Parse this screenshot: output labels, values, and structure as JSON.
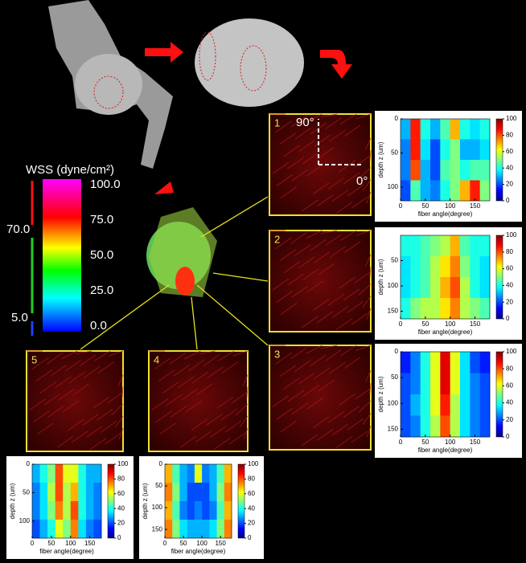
{
  "colorbar": {
    "title": "WSS (dyne/cm²)",
    "ticks": [
      "100.0",
      "75.0",
      "50.0",
      "25.0",
      "0.0"
    ],
    "ranges": [
      "70.0",
      "5.0"
    ]
  },
  "panels": [
    "1",
    "2",
    "3",
    "4",
    "5"
  ],
  "orientation": {
    "vertical": "90°",
    "horizontal": "0°"
  },
  "heatmaps": [
    {
      "xlabel": "fiber angle(degree)",
      "ylabel": "depth z (um)",
      "xlim": [
        0,
        180
      ],
      "xticks": [
        0,
        50,
        100,
        150
      ],
      "ylim": [
        0,
        120
      ],
      "yticks": [
        0,
        50,
        100
      ],
      "clim": [
        0,
        100
      ],
      "cticks": [
        0,
        20,
        40,
        60,
        80,
        100
      ],
      "values": [
        [
          30,
          85,
          40,
          30,
          45,
          70,
          40,
          35,
          40
        ],
        [
          25,
          85,
          35,
          20,
          40,
          50,
          30,
          30,
          35
        ],
        [
          25,
          80,
          30,
          20,
          45,
          50,
          40,
          45,
          45
        ],
        [
          20,
          45,
          30,
          25,
          40,
          50,
          70,
          85,
          50
        ]
      ]
    },
    {
      "xlabel": "fiber angle(degree)",
      "ylabel": "depth z (um)",
      "xlim": [
        0,
        180
      ],
      "xticks": [
        0,
        50,
        100,
        150
      ],
      "ylim": [
        0,
        165
      ],
      "yticks": [
        50,
        100,
        150
      ],
      "clim": [
        0,
        100
      ],
      "cticks": [
        0,
        20,
        40,
        60,
        80,
        100
      ],
      "values": [
        [
          40,
          40,
          45,
          50,
          55,
          70,
          45,
          40,
          40
        ],
        [
          35,
          40,
          45,
          55,
          65,
          75,
          50,
          40,
          35
        ],
        [
          35,
          40,
          45,
          55,
          70,
          80,
          55,
          40,
          35
        ],
        [
          40,
          50,
          55,
          55,
          65,
          75,
          55,
          50,
          45
        ]
      ]
    },
    {
      "xlabel": "fiber angle(degree)",
      "ylabel": "depth z (um)",
      "xlim": [
        0,
        180
      ],
      "xticks": [
        0,
        50,
        100,
        150
      ],
      "ylim": [
        0,
        165
      ],
      "yticks": [
        0,
        50,
        100,
        150
      ],
      "clim": [
        0,
        100
      ],
      "cticks": [
        0,
        20,
        40,
        60,
        80,
        100
      ],
      "values": [
        [
          15,
          25,
          40,
          60,
          90,
          60,
          35,
          20,
          15
        ],
        [
          20,
          25,
          40,
          60,
          90,
          60,
          35,
          25,
          20
        ],
        [
          20,
          30,
          40,
          60,
          85,
          55,
          35,
          25,
          20
        ],
        [
          20,
          25,
          40,
          55,
          80,
          55,
          35,
          25,
          20
        ]
      ]
    },
    {
      "xlabel": "fiber angle(degree)",
      "ylabel": "depth z (um)",
      "xlim": [
        0,
        180
      ],
      "xticks": [
        0,
        50,
        100,
        150
      ],
      "ylim": [
        0,
        130
      ],
      "yticks": [
        0,
        50,
        100
      ],
      "clim": [
        0,
        100
      ],
      "cticks": [
        0,
        20,
        40,
        60,
        80,
        100
      ],
      "values": [
        [
          30,
          40,
          50,
          80,
          60,
          60,
          40,
          30,
          30
        ],
        [
          25,
          35,
          55,
          80,
          55,
          70,
          40,
          30,
          25
        ],
        [
          25,
          35,
          50,
          75,
          55,
          80,
          40,
          30,
          25
        ],
        [
          20,
          30,
          40,
          60,
          50,
          75,
          35,
          25,
          20
        ]
      ]
    },
    {
      "xlabel": "fiber angle(degree)",
      "ylabel": "depth z (um)",
      "xlim": [
        0,
        180
      ],
      "xticks": [
        0,
        50,
        100,
        150
      ],
      "ylim": [
        0,
        170
      ],
      "yticks": [
        0,
        50,
        100,
        150
      ],
      "clim": [
        0,
        100
      ],
      "cticks": [
        0,
        20,
        40,
        60,
        80,
        100
      ],
      "values": [
        [
          70,
          45,
          30,
          25,
          60,
          25,
          30,
          45,
          70
        ],
        [
          75,
          50,
          30,
          20,
          20,
          20,
          30,
          50,
          75
        ],
        [
          70,
          45,
          25,
          20,
          25,
          20,
          25,
          45,
          70
        ],
        [
          75,
          50,
          35,
          30,
          30,
          30,
          35,
          50,
          75
        ]
      ]
    }
  ]
}
